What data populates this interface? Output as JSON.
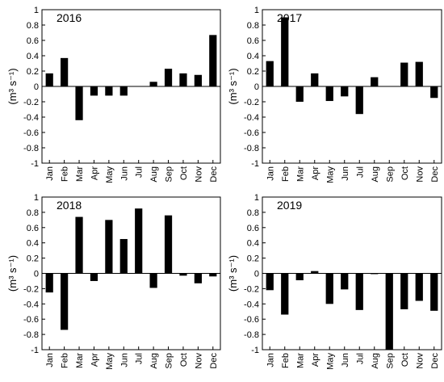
{
  "chart_data": [
    {
      "type": "bar",
      "title": "2016",
      "ylabel": "(m³ s⁻¹)",
      "ylim": [
        -1,
        1
      ],
      "yticks": [
        1,
        0.8,
        0.6,
        0.4,
        0.2,
        0,
        -0.2,
        -0.4,
        -0.6,
        -0.8,
        -1
      ],
      "yticklabels": [
        "1",
        "0.8",
        "0.6",
        "0.4",
        "0.2",
        "0",
        "-0.2",
        "-0.4",
        "-0.6",
        "-0.8",
        "-1"
      ],
      "categories": [
        "Jan",
        "Feb",
        "Mar",
        "Apr",
        "May",
        "Jun",
        "Jul",
        "Aug",
        "Sep",
        "Oct",
        "Nov",
        "Dec"
      ],
      "values": [
        0.17,
        0.37,
        -0.44,
        -0.12,
        -0.12,
        -0.12,
        0.0,
        0.06,
        0.23,
        0.17,
        0.15,
        0.67
      ]
    },
    {
      "type": "bar",
      "title": "2017",
      "ylabel": "(m³ s⁻¹)",
      "ylim": [
        -1,
        1
      ],
      "yticks": [
        1,
        0.8,
        0.6,
        0.4,
        0.2,
        0,
        -0.2,
        -0.4,
        -0.6,
        -0.8,
        -1
      ],
      "yticklabels": [
        "1",
        "0.8",
        "0.6",
        "0.4",
        "0.2",
        "0",
        "-0.2",
        "-0.4",
        "-0.6",
        "-0.8",
        "-1"
      ],
      "categories": [
        "Jan",
        "Feb",
        "Mar",
        "Apr",
        "May",
        "Jun",
        "Jul",
        "Aug",
        "Sep",
        "Oct",
        "Nov",
        "Dec"
      ],
      "values": [
        0.33,
        0.9,
        -0.2,
        0.17,
        -0.19,
        -0.13,
        -0.36,
        0.12,
        0.0,
        0.31,
        0.32,
        -0.15
      ]
    },
    {
      "type": "bar",
      "title": "2018",
      "ylabel": "(m³ s⁻¹)",
      "ylim": [
        -1,
        1
      ],
      "yticks": [
        1,
        0.8,
        0.6,
        0.4,
        0.2,
        0,
        -0.2,
        -0.4,
        -0.6,
        -0.8,
        -1
      ],
      "yticklabels": [
        "1",
        "0.8",
        "0.6",
        "0.4",
        "0.2",
        "0",
        "-0.2",
        "-0.4",
        "-0.6",
        "-0.8",
        "-1"
      ],
      "categories": [
        "Jan",
        "Feb",
        "Mar",
        "Apr",
        "May",
        "Jun",
        "Jul",
        "Aug",
        "Sep",
        "Oct",
        "Nov",
        "Dec"
      ],
      "values": [
        -0.25,
        -0.74,
        0.74,
        -0.1,
        0.7,
        0.45,
        0.85,
        -0.19,
        0.76,
        -0.03,
        -0.13,
        -0.04
      ]
    },
    {
      "type": "bar",
      "title": "2019",
      "ylabel": "(m³ s⁻¹)",
      "ylim": [
        -1,
        1
      ],
      "yticks": [
        1,
        0.8,
        0.6,
        0.4,
        0.2,
        0,
        -0.2,
        -0.4,
        -0.6,
        -0.8,
        -1
      ],
      "yticklabels": [
        "1",
        "0.8",
        "0.6",
        "0.4",
        "0.2",
        "0",
        "-0.2",
        "-0.4",
        "-0.6",
        "-0.8",
        "-1"
      ],
      "categories": [
        "Jan",
        "Feb",
        "Mar",
        "Apr",
        "May",
        "Jun",
        "Jul",
        "Aug",
        "Sep",
        "Oct",
        "Nov",
        "Dec"
      ],
      "values": [
        -0.22,
        -0.54,
        -0.09,
        0.03,
        -0.4,
        -0.21,
        -0.48,
        -0.01,
        -1.0,
        -0.47,
        -0.36,
        -0.49
      ]
    }
  ],
  "colors": {
    "bar": "#000000",
    "axis": "#000000",
    "background": "#ffffff"
  }
}
